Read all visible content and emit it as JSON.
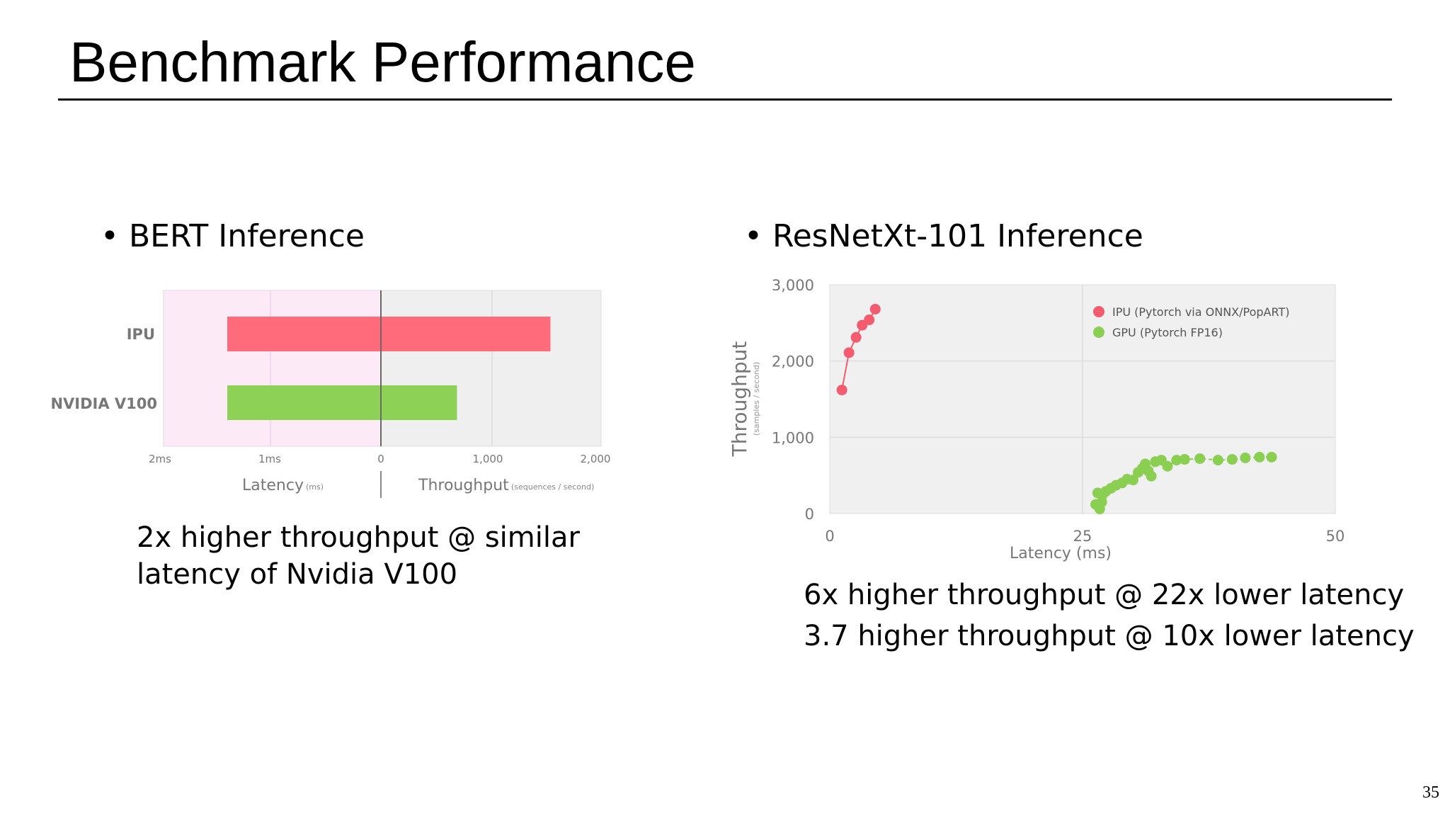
{
  "slide": {
    "title": "Benchmark Performance",
    "page_number": "35"
  },
  "left": {
    "bullet": "BERT Inference",
    "note_lines": [
      "2x higher throughput @ similar",
      "latency of Nvidia V100"
    ]
  },
  "right": {
    "bullet": "ResNetXt-101 Inference",
    "note_lines": [
      "6x higher throughput @ 22x lower latency",
      "3.7 higher throughput @ 10x lower latency"
    ]
  },
  "chart_data": [
    {
      "type": "bar",
      "orientation": "horizontal",
      "categories": [
        "IPU",
        "NVIDIA V100"
      ],
      "series": [
        {
          "name": "Latency",
          "unit": "ms",
          "values": [
            1.4,
            1.4
          ]
        },
        {
          "name": "Throughput",
          "unit": "sequences / second",
          "values": [
            1560,
            700
          ]
        }
      ],
      "latency_axis": {
        "label": "Latency",
        "unit": "(ms)",
        "ticks": [
          "2ms",
          "1ms",
          "0"
        ],
        "range": [
          2,
          0
        ]
      },
      "throughput_axis": {
        "label": "Throughput",
        "unit": "(sequences / second)",
        "ticks": [
          "1,000",
          "2,000"
        ],
        "range": [
          0,
          2000
        ]
      },
      "colors": {
        "IPU": "#ff6b7b",
        "NVIDIA V100": "#8ed157",
        "latency_bg": "#fdeaf7",
        "throughput_bg": "#f0eff0"
      }
    },
    {
      "type": "scatter",
      "xlabel": "Latency (ms)",
      "ylabel": "Throughput",
      "ylabel_sub": "(samples / second)",
      "xlim": [
        0,
        50
      ],
      "ylim": [
        0,
        3000
      ],
      "xticks": [
        0,
        25,
        50
      ],
      "xtick_labels": [
        "0",
        "25",
        "50"
      ],
      "yticks": [
        0,
        1000,
        2000,
        3000
      ],
      "ytick_labels": [
        "0",
        "1,000",
        "2,000",
        "3,000"
      ],
      "grid": true,
      "legend_position": "top-right",
      "series": [
        {
          "name": "IPU (Pytorch via ONNX/PopART)",
          "color": "#f25c6e",
          "connected": "solid",
          "points": [
            [
              1.2,
              1620
            ],
            [
              1.9,
              2110
            ],
            [
              2.6,
              2310
            ],
            [
              3.2,
              2470
            ],
            [
              3.9,
              2540
            ],
            [
              4.5,
              2680
            ]
          ]
        },
        {
          "name": "GPU (Pytorch FP16)",
          "color": "#8bcf52",
          "connected": "dashed",
          "points": [
            [
              26.3,
              120
            ],
            [
              26.7,
              60
            ],
            [
              26.9,
              150
            ],
            [
              27.0,
              250
            ],
            [
              26.5,
              270
            ],
            [
              27.3,
              290
            ],
            [
              27.8,
              330
            ],
            [
              28.3,
              370
            ],
            [
              28.9,
              400
            ],
            [
              29.4,
              450
            ],
            [
              30.0,
              440
            ],
            [
              30.5,
              540
            ],
            [
              30.9,
              590
            ],
            [
              31.2,
              650
            ],
            [
              31.5,
              560
            ],
            [
              31.8,
              490
            ],
            [
              32.2,
              680
            ],
            [
              32.8,
              700
            ],
            [
              33.4,
              620
            ],
            [
              34.3,
              700
            ],
            [
              35.1,
              710
            ],
            [
              36.6,
              720
            ],
            [
              38.4,
              700
            ],
            [
              39.8,
              710
            ],
            [
              41.1,
              730
            ],
            [
              42.5,
              740
            ],
            [
              43.7,
              740
            ]
          ]
        }
      ]
    }
  ]
}
